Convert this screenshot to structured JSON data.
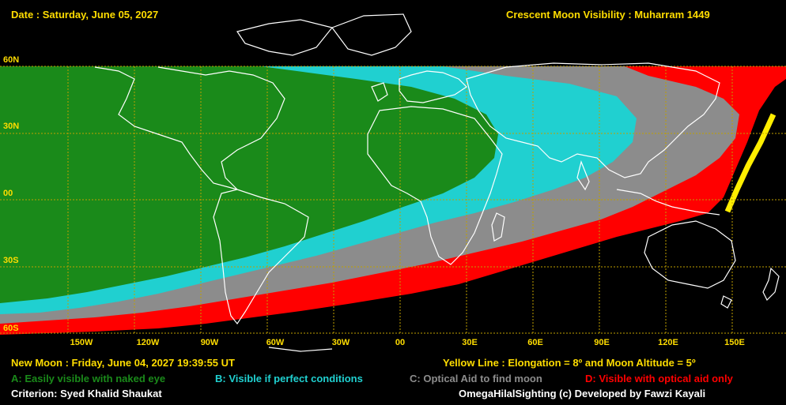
{
  "header": {
    "date": "Date : Saturday, June 05, 2027",
    "title": "Crescent Moon Visibility : Muharram  1449"
  },
  "footer": {
    "new_moon": "New Moon : Friday, June 04, 2027  19:39:55  UT",
    "yellow_line": "Yellow Line : Elongation = 8º  and Moon Altitude = 5º",
    "criterion": "Criterion: Syed Khalid Shaukat",
    "credit": "OmegaHilalSighting  (c)  Developed by Fawzi Kayali"
  },
  "legend": [
    {
      "label": "A: Easily visible with naked eye",
      "color": "#1a8a1a"
    },
    {
      "label": "B: Visible if perfect conditions",
      "color": "#20d0d0"
    },
    {
      "label": "C: Optical Aid to find moon",
      "color": "#8c8c8c"
    },
    {
      "label": "D: Visible with optical aid only",
      "color": "#ff0000"
    }
  ],
  "lat_labels": [
    "60N",
    "30N",
    "00",
    "30S",
    "60S"
  ],
  "lon_labels": [
    "150W",
    "120W",
    "90W",
    "60W",
    "30W",
    "00",
    "30E",
    "60E",
    "90E",
    "120E",
    "150E"
  ],
  "zone_colors": {
    "A": "#1a8a1a",
    "B": "#20d0d0",
    "C": "#8c8c8c",
    "D": "#ff0000",
    "yellow_line": "#ffee00",
    "grid": "#bfa000",
    "coast": "#ffffff"
  }
}
